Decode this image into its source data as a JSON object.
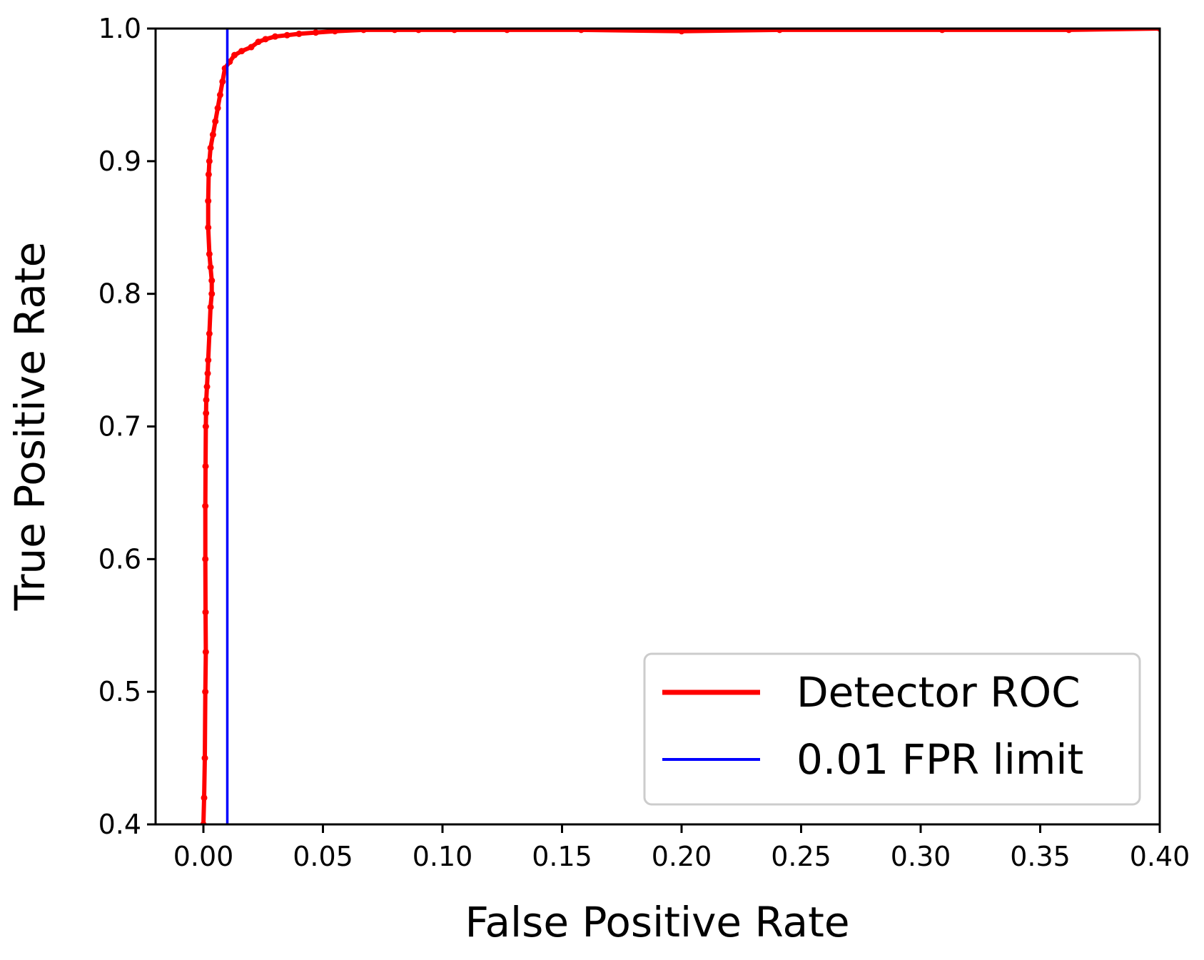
{
  "chart_data": {
    "type": "line",
    "title": "",
    "xlabel": "False Positive Rate",
    "ylabel": "True Positive Rate",
    "xlim": [
      -0.02,
      0.4
    ],
    "ylim": [
      0.4,
      1.0
    ],
    "xticks": [
      0.0,
      0.05,
      0.1,
      0.15,
      0.2,
      0.25,
      0.3,
      0.35,
      0.4
    ],
    "xtick_labels": [
      "0.00",
      "0.05",
      "0.10",
      "0.15",
      "0.20",
      "0.25",
      "0.30",
      "0.35",
      "0.40"
    ],
    "yticks": [
      0.4,
      0.5,
      0.6,
      0.7,
      0.8,
      0.9,
      1.0
    ],
    "ytick_labels": [
      "0.4",
      "0.5",
      "0.6",
      "0.7",
      "0.8",
      "0.9",
      "1.0"
    ],
    "grid": false,
    "legend_position": "bottom-right",
    "series": [
      {
        "name": "Detector ROC",
        "color": "#ff0000",
        "marker": "dot",
        "x": [
          0.0,
          0.0003,
          0.0006,
          0.0008,
          0.001,
          0.0009,
          0.0008,
          0.0008,
          0.0009,
          0.001,
          0.0011,
          0.0012,
          0.0015,
          0.0018,
          0.002,
          0.0025,
          0.003,
          0.0035,
          0.0035,
          0.003,
          0.0025,
          0.002,
          0.002,
          0.0022,
          0.0025,
          0.003,
          0.004,
          0.005,
          0.006,
          0.007,
          0.008,
          0.009,
          0.011,
          0.013,
          0.016,
          0.02,
          0.023,
          0.026,
          0.03,
          0.035,
          0.04,
          0.047,
          0.055,
          0.067,
          0.08,
          0.09,
          0.105,
          0.127,
          0.158,
          0.2,
          0.241,
          0.309,
          0.362,
          0.4
        ],
        "y": [
          0.4,
          0.42,
          0.45,
          0.5,
          0.53,
          0.56,
          0.6,
          0.64,
          0.67,
          0.7,
          0.71,
          0.72,
          0.73,
          0.74,
          0.75,
          0.77,
          0.79,
          0.8,
          0.81,
          0.82,
          0.83,
          0.85,
          0.87,
          0.89,
          0.9,
          0.91,
          0.92,
          0.93,
          0.94,
          0.95,
          0.96,
          0.97,
          0.975,
          0.98,
          0.983,
          0.986,
          0.99,
          0.992,
          0.994,
          0.995,
          0.996,
          0.997,
          0.998,
          0.999,
          0.999,
          0.999,
          0.999,
          0.999,
          0.999,
          0.998,
          0.999,
          0.999,
          0.999,
          1.0
        ]
      },
      {
        "name": "0.01 FPR limit",
        "color": "#0000ff",
        "marker": "none",
        "x": [
          0.01,
          0.01
        ],
        "y": [
          0.4,
          1.0
        ]
      }
    ],
    "legend": [
      "Detector ROC",
      "0.01 FPR limit"
    ]
  }
}
